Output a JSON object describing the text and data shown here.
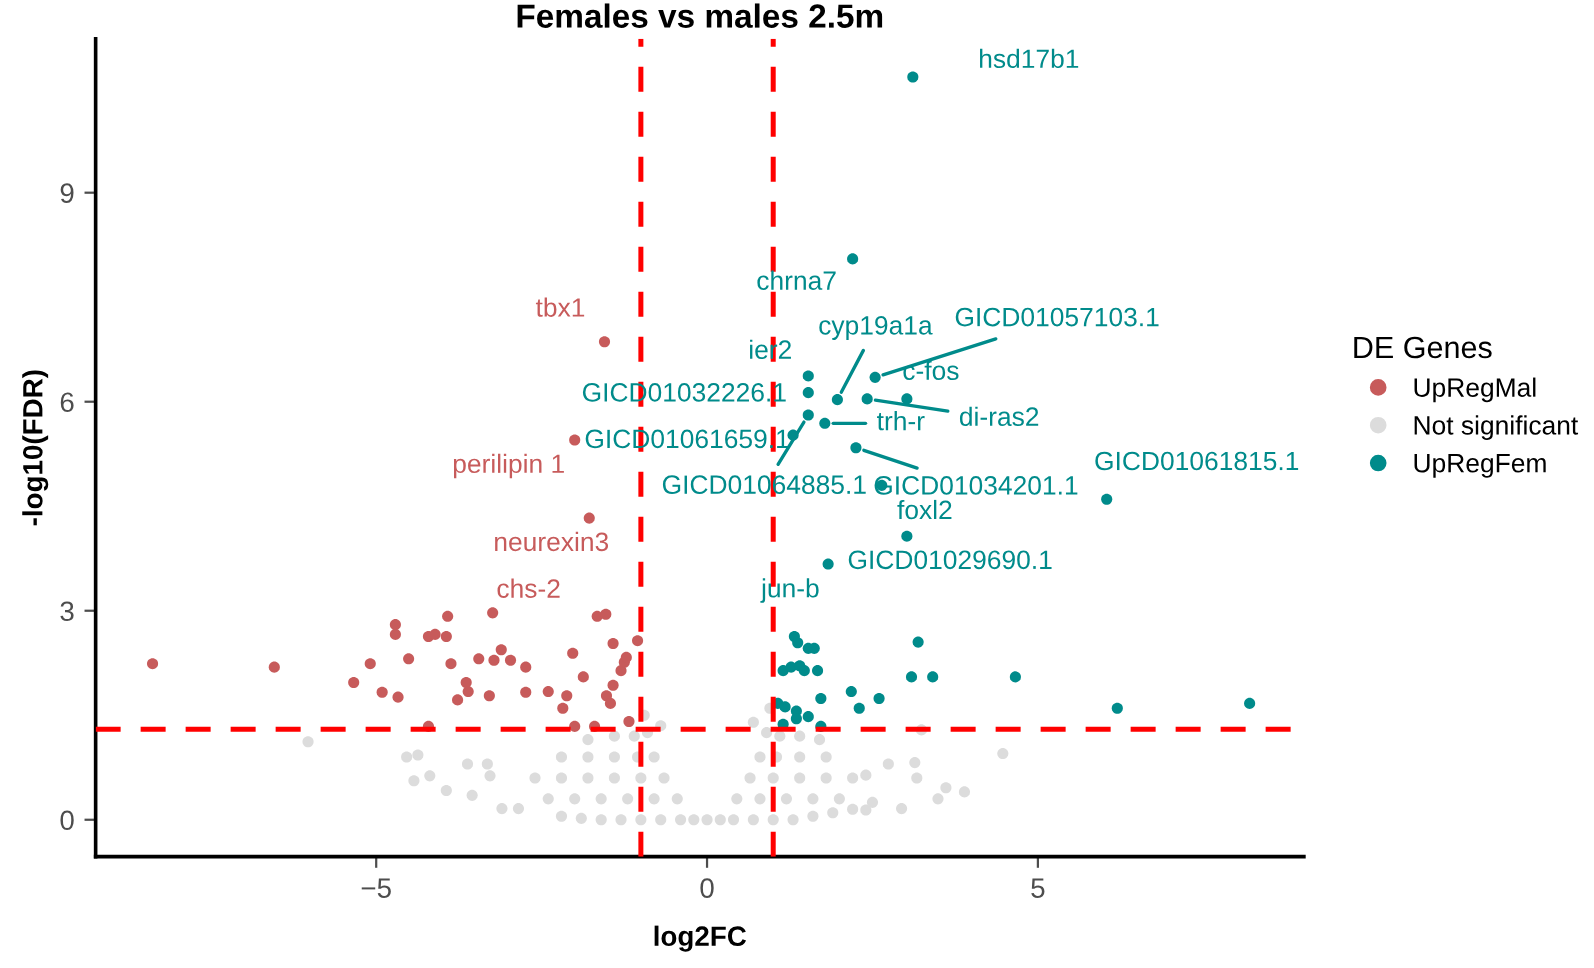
{
  "chart_data": {
    "type": "scatter",
    "title": "Females vs males 2.5m",
    "xlabel": "log2FC",
    "ylabel": "-log10(FDR)",
    "legend_title": "DE Genes",
    "legend": "right",
    "marker": "circle",
    "grid": false,
    "xlim": [
      -9.24,
      9.02
    ],
    "ylim": [
      -0.53,
      11.21
    ],
    "xticks": [
      {
        "value": -5,
        "label": "−5"
      },
      0,
      5
    ],
    "yticks": [
      0,
      3,
      6,
      9
    ],
    "ref_lines": [
      {
        "axis": "x",
        "value": -1,
        "color": "#ff0000",
        "line_style": "dashed"
      },
      {
        "axis": "x",
        "value": 1,
        "color": "#ff0000",
        "line_style": "dashed"
      },
      {
        "axis": "y",
        "value": 1.3,
        "color": "#ff0000",
        "line_style": "dashed"
      }
    ],
    "series": [
      {
        "name": "UpRegMal",
        "color": "#c75b5b",
        "x": [
          -8.38,
          -6.54,
          -5.34,
          -5.09,
          -4.91,
          -4.67,
          -4.71,
          -4.71,
          -4.51,
          -4.21,
          -4.11,
          -3.92,
          -3.94,
          -3.87,
          -3.77,
          -3.64,
          -3.61,
          -3.45,
          -3.29,
          -3.24,
          -3.22,
          -3.11,
          -2.97,
          -2.74,
          -2.74,
          -2.4,
          -2.18,
          -2.12,
          -2.03,
          -1.87,
          -2.0,
          -1.7,
          -1.66,
          -1.53,
          -1.52,
          -1.46,
          -1.42,
          -1.42,
          -1.3,
          -1.25,
          -1.22,
          -1.05,
          -1.18,
          -4.21,
          -1.55,
          -2.0,
          -1.78
        ],
        "values": [
          2.24,
          2.19,
          1.97,
          2.24,
          1.83,
          1.76,
          2.8,
          2.66,
          2.31,
          2.63,
          2.66,
          2.92,
          2.63,
          2.24,
          1.72,
          1.97,
          1.84,
          2.31,
          1.78,
          2.97,
          2.29,
          2.44,
          2.29,
          2.19,
          1.83,
          1.84,
          1.6,
          1.78,
          2.39,
          2.05,
          1.34,
          1.34,
          2.92,
          2.95,
          1.78,
          1.67,
          1.93,
          2.53,
          2.14,
          2.26,
          2.33,
          2.57,
          1.41,
          1.34,
          6.86,
          5.45,
          4.33
        ]
      },
      {
        "name": "Not significant",
        "color": "#dcdcdc",
        "x": [
          -2.2,
          -1.9,
          -1.6,
          -1.3,
          -1.0,
          -0.7,
          -0.4,
          -0.2,
          0,
          0.2,
          0.4,
          0.7,
          1.0,
          1.3,
          1.6,
          1.9,
          2.2,
          -2.4,
          -2.0,
          -1.6,
          -1.2,
          -0.8,
          -0.45,
          0.45,
          0.8,
          1.2,
          1.6,
          2.0,
          2.5,
          -2.6,
          -2.2,
          -1.8,
          -1.4,
          -1.0,
          -0.65,
          0.65,
          1.0,
          1.4,
          1.8,
          2.2,
          -2.2,
          -1.8,
          -1.4,
          -1.05,
          -0.8,
          0.8,
          1.05,
          1.4,
          1.8,
          -1.8,
          -1.4,
          -1.1,
          -0.9,
          0.9,
          1.1,
          1.4,
          1.7,
          -0.95,
          0.95,
          -0.7,
          0.7,
          -6.03,
          -4.54,
          -4.37,
          -4.19,
          -4.43,
          -3.94,
          -3.62,
          -3.32,
          -3.55,
          -3.1,
          -2.85,
          -3.28,
          4.47,
          3.89,
          3.61,
          3.49,
          3.14,
          3.17,
          3.24,
          2.74,
          2.94,
          2.4,
          2.4
        ],
        "values": [
          0.05,
          0.02,
          0.0,
          0.0,
          0.0,
          0.0,
          0.0,
          0.0,
          0.0,
          0.0,
          0.0,
          0.0,
          0.0,
          0.0,
          0.05,
          0.1,
          0.15,
          0.3,
          0.3,
          0.3,
          0.3,
          0.3,
          0.3,
          0.3,
          0.3,
          0.3,
          0.3,
          0.3,
          0.25,
          0.6,
          0.6,
          0.6,
          0.6,
          0.6,
          0.6,
          0.6,
          0.6,
          0.6,
          0.6,
          0.6,
          0.9,
          0.9,
          0.9,
          0.9,
          0.9,
          0.9,
          0.9,
          0.9,
          0.9,
          1.15,
          1.2,
          1.2,
          1.25,
          1.25,
          1.2,
          1.2,
          1.15,
          1.5,
          1.6,
          1.35,
          1.4,
          1.12,
          0.9,
          0.93,
          0.63,
          0.56,
          0.42,
          0.8,
          0.8,
          0.35,
          0.16,
          0.16,
          0.63,
          0.95,
          0.4,
          0.46,
          0.3,
          0.82,
          0.6,
          1.29,
          0.8,
          0.16,
          0.64,
          0.14
        ]
      },
      {
        "name": "UpRegFem",
        "color": "#008b8b",
        "x": [
          3.11,
          2.2,
          1.53,
          1.53,
          1.97,
          2.54,
          3.02,
          2.42,
          1.78,
          1.53,
          1.3,
          2.25,
          6.04,
          2.64,
          3.02,
          1.83,
          1.32,
          1.37,
          1.53,
          1.62,
          3.19,
          1.15,
          1.27,
          1.4,
          1.47,
          1.67,
          3.09,
          3.41,
          4.66,
          1.72,
          2.18,
          2.3,
          2.6,
          6.2,
          8.2,
          1.07,
          1.18,
          1.35,
          1.35,
          1.53,
          1.72,
          1.15
        ],
        "values": [
          10.66,
          8.05,
          6.37,
          6.13,
          6.03,
          6.35,
          6.04,
          6.04,
          5.69,
          5.81,
          5.52,
          5.34,
          4.6,
          4.8,
          4.07,
          3.67,
          2.63,
          2.54,
          2.46,
          2.46,
          2.55,
          2.14,
          2.19,
          2.21,
          2.14,
          2.14,
          2.05,
          2.05,
          2.05,
          1.74,
          1.84,
          1.6,
          1.74,
          1.6,
          1.67,
          1.67,
          1.62,
          1.56,
          1.45,
          1.48,
          1.34,
          1.37
        ]
      }
    ],
    "annotations": [
      {
        "text": "hsd17b1",
        "x": 3.11,
        "y": 10.66
      },
      {
        "text": "chrna7",
        "x": 2.2,
        "y": 8.05
      },
      {
        "text": "tbx1",
        "x": -1.55,
        "y": 6.86
      },
      {
        "text": "ier2",
        "x": 1.53,
        "y": 6.37
      },
      {
        "text": "GICD01032226.1",
        "x": 1.53,
        "y": 6.13
      },
      {
        "text": "cyp19a1a",
        "x": 1.97,
        "y": 6.03
      },
      {
        "text": "GICD01057103.1",
        "x": 2.54,
        "y": 6.35
      },
      {
        "text": "c-fos",
        "x": 3.02,
        "y": 6.04
      },
      {
        "text": "di-ras2",
        "x": 2.42,
        "y": 6.04
      },
      {
        "text": "trh-r",
        "x": 1.78,
        "y": 5.69
      },
      {
        "text": "GICD01061659.1",
        "x": 1.3,
        "y": 5.52
      },
      {
        "text": "GICD01064885.1",
        "x": 1.53,
        "y": 5.81
      },
      {
        "text": "GICD01034201.1",
        "x": 2.25,
        "y": 5.34
      },
      {
        "text": "GICD01061815.1",
        "x": 6.04,
        "y": 4.6
      },
      {
        "text": "foxl2",
        "x": 3.02,
        "y": 4.07
      },
      {
        "text": "GICD01029690.1",
        "x": 1.83,
        "y": 3.67
      },
      {
        "text": "jun-b",
        "x": 1.32,
        "y": 2.63
      },
      {
        "text": "perilipin 1",
        "x": -2.0,
        "y": 5.45
      },
      {
        "text": "neurexin3",
        "x": -1.78,
        "y": 4.33
      },
      {
        "text": "chs-2",
        "x": -3.24,
        "y": 2.97
      }
    ]
  }
}
